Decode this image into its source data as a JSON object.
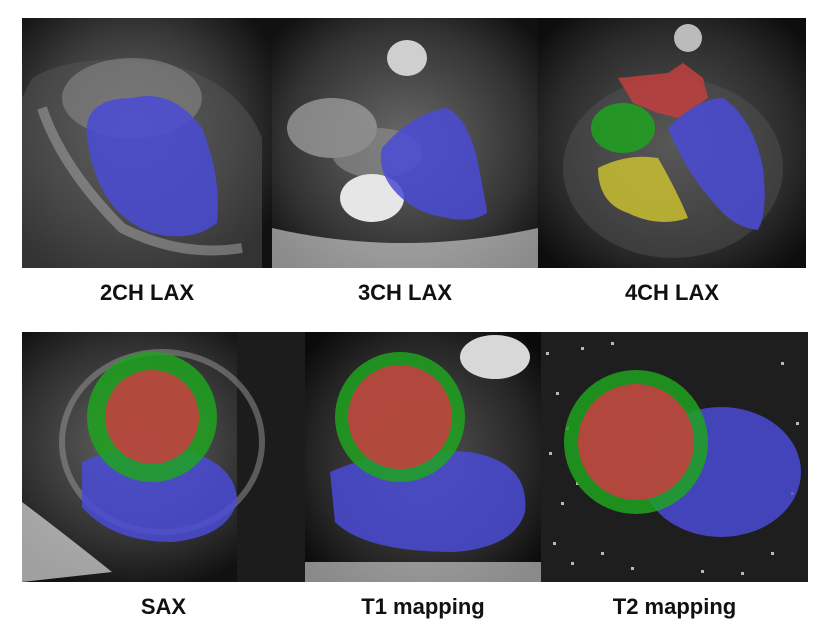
{
  "panels": [
    {
      "id": "2ch",
      "label": "2CH LAX"
    },
    {
      "id": "3ch",
      "label": "3CH LAX"
    },
    {
      "id": "4ch",
      "label": "4CH LAX"
    },
    {
      "id": "sax",
      "label": "SAX"
    },
    {
      "id": "t1",
      "label": "T1 mapping"
    },
    {
      "id": "t2",
      "label": "T2 mapping"
    }
  ],
  "segmentation_colors": {
    "blue": "#4a4ad6",
    "green": "#1fa31f",
    "red": "#c24040",
    "yellow": "#c9c030"
  }
}
